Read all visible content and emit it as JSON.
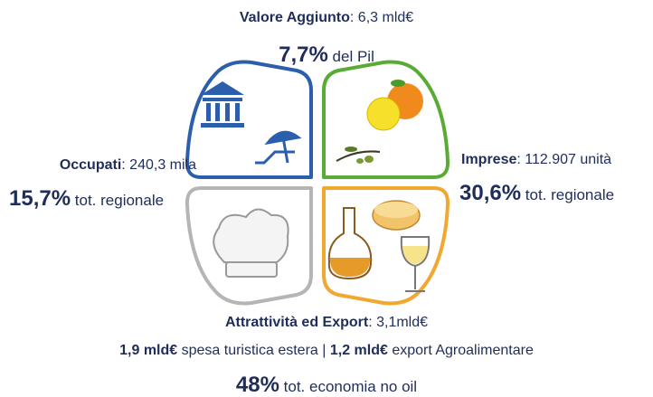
{
  "top": {
    "label": "Valore Aggiunto",
    "value": ": 6,3 mld€",
    "share": "7,7%",
    "share_text": " del Pil"
  },
  "left": {
    "label": "Occupati",
    "value": ": 240,3 mila",
    "share": "15,7%",
    "share_text": " tot. regionale"
  },
  "right": {
    "label": "Imprese",
    "value": ": 112.907 unità",
    "share": "30,6%",
    "share_text": " tot. regionale"
  },
  "bottom": {
    "label": "Attrattività ed Export",
    "value": ": 3,1mld€",
    "detail": [
      "1,9 mld€",
      " spesa turistica estera | ",
      "1,2 mld€",
      " export Agroalimentare"
    ],
    "share": "48%",
    "share_text": " tot. economia no oil"
  }
}
